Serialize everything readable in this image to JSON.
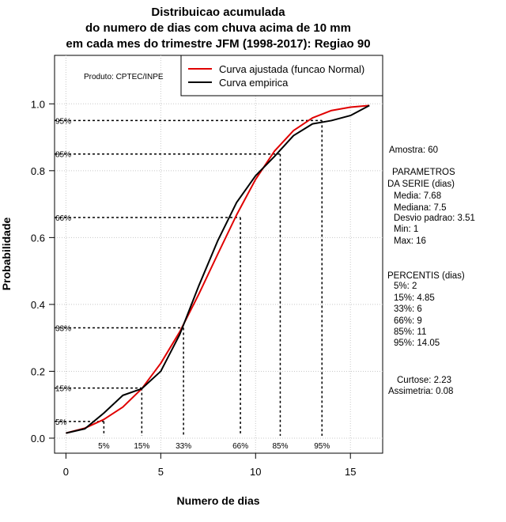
{
  "chart_data": {
    "type": "line",
    "title": [
      "Distribuicao acumulada",
      "do numero de dias com chuva acima de 10 mm",
      "em cada mes do trimestre JFM (1998-2017): Regiao 90"
    ],
    "xlabel": "Numero de dias",
    "ylabel": "Probabilidade",
    "xlim": [
      -0.6,
      16.7
    ],
    "ylim": [
      -0.045,
      1.145
    ],
    "xticks": [
      0,
      5,
      10,
      15
    ],
    "yticks": [
      0.0,
      0.2,
      0.4,
      0.6,
      0.8,
      1.0
    ],
    "xtick_labels": [
      "0",
      "5",
      "10",
      "15"
    ],
    "ytick_labels": [
      "0.0",
      "0.2",
      "0.4",
      "0.6",
      "0.8",
      "1.0"
    ],
    "grid": true,
    "legend_position": "top-right",
    "produto": "Produto: CPTEC/INPE",
    "series": [
      {
        "name": "Curva ajustada (funcao Normal)",
        "color": "#e00000",
        "x": [
          0,
          1,
          2,
          3,
          4,
          5,
          6,
          7,
          8,
          9,
          10,
          11,
          12,
          13,
          14,
          15,
          16
        ],
        "y": [
          0.015,
          0.03,
          0.056,
          0.093,
          0.148,
          0.224,
          0.318,
          0.43,
          0.55,
          0.668,
          0.774,
          0.859,
          0.92,
          0.958,
          0.98,
          0.99,
          0.995
        ]
      },
      {
        "name": "Curva empirica",
        "color": "#000000",
        "x": [
          0,
          1,
          2,
          3,
          4,
          5,
          6,
          7,
          8,
          9,
          10,
          11,
          12,
          13,
          14,
          15,
          16
        ],
        "y": [
          0.015,
          0.028,
          0.075,
          0.128,
          0.148,
          0.2,
          0.31,
          0.455,
          0.59,
          0.705,
          0.785,
          0.843,
          0.905,
          0.94,
          0.95,
          0.965,
          0.995
        ]
      }
    ],
    "percentile_markers": [
      {
        "label": "5%",
        "prob": 0.05,
        "days": 2
      },
      {
        "label": "15%",
        "prob": 0.15,
        "days": 4
      },
      {
        "label": "33%",
        "prob": 0.33,
        "days": 6.2
      },
      {
        "label": "66%",
        "prob": 0.66,
        "days": 9.2
      },
      {
        "label": "85%",
        "prob": 0.85,
        "days": 11.3
      },
      {
        "label": "95%",
        "prob": 0.95,
        "days": 13.5
      }
    ]
  },
  "stats": {
    "amostra": "Amostra: 60",
    "param_title_1": "PARAMETROS",
    "param_title_2": "DA SERIE (dias)",
    "media": "Media: 7.68",
    "mediana": "Mediana: 7.5",
    "desvio": "Desvio padrao: 3.51",
    "min": "Min: 1",
    "max": "Max: 16",
    "perc_title": "PERCENTIS (dias)",
    "p5": "5%: 2",
    "p15": "15%: 4.85",
    "p33": "33%: 6",
    "p66": "66%: 9",
    "p85": "85%: 11",
    "p95": "95%: 14.05",
    "curtose": "Curtose: 2.23",
    "assimetria": "Assimetria: 0.08"
  }
}
